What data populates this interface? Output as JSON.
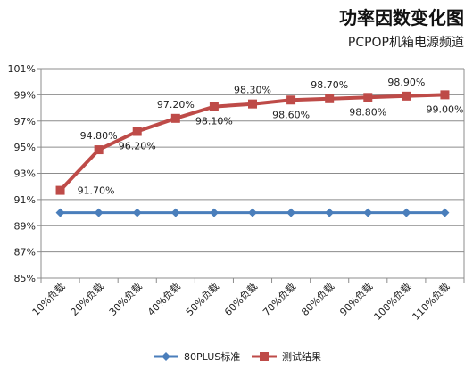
{
  "chart_data": {
    "type": "line",
    "title": "功率因数变化图",
    "subtitle": "PCPOP机箱电源频道",
    "categories": [
      "10%负载",
      "20%负载",
      "30%负载",
      "40%负载",
      "50%负载",
      "60%负载",
      "70%负载",
      "80%负载",
      "90%负载",
      "100%负载",
      "110%负载"
    ],
    "ylim": [
      85,
      101
    ],
    "yticks": [
      85,
      87,
      89,
      91,
      93,
      95,
      97,
      99,
      101
    ],
    "ytick_labels": [
      "85%",
      "87%",
      "89%",
      "91%",
      "93%",
      "95%",
      "97%",
      "99%",
      "101%"
    ],
    "grid": true,
    "legend_position": "bottom",
    "series": [
      {
        "name": "80PLUS标准",
        "color": "#4a7ebb",
        "marker": "diamond",
        "values": [
          90,
          90,
          90,
          90,
          90,
          90,
          90,
          90,
          90,
          90,
          90
        ]
      },
      {
        "name": "测试结果",
        "color": "#be4b48",
        "marker": "square",
        "values": [
          91.7,
          94.8,
          96.2,
          97.2,
          98.1,
          98.3,
          98.6,
          98.7,
          98.8,
          98.9,
          99.0
        ],
        "data_labels": [
          "91.70%",
          "94.80%",
          "96.20%",
          "97.20%",
          "98.10%",
          "98.30%",
          "98.60%",
          "98.70%",
          "98.80%",
          "98.90%",
          "99.00%"
        ]
      }
    ]
  }
}
